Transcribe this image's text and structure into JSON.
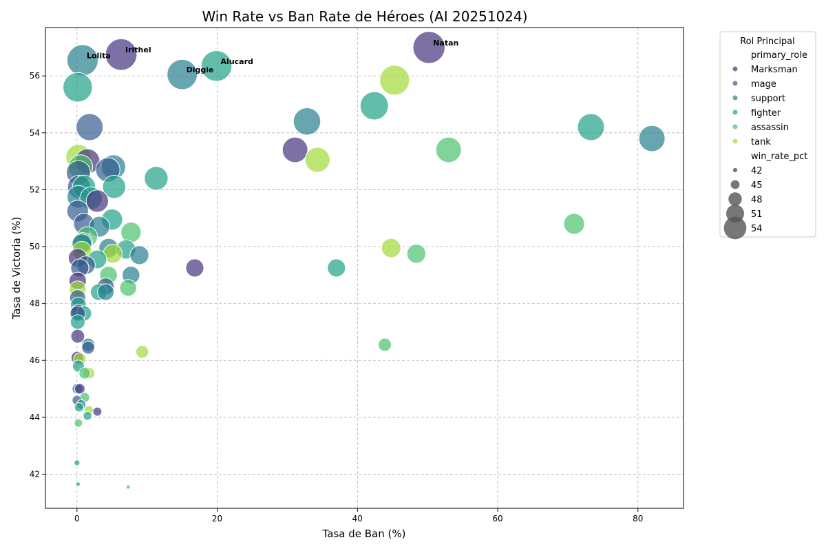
{
  "chart_data": {
    "type": "scatter",
    "title": "Win Rate vs Ban Rate de Héroes (AI 20251024)",
    "xlabel": "Tasa de Ban (%)",
    "ylabel": "Tasa de Victoria (%)",
    "xlim": [
      -4.5,
      86.5
    ],
    "ylim": [
      40.8,
      57.7
    ],
    "xticks": [
      0,
      20,
      40,
      60,
      80
    ],
    "yticks": [
      42,
      44,
      46,
      48,
      50,
      52,
      54,
      56
    ],
    "grid": true,
    "legend": {
      "title": "Rol Principal",
      "placement": "outside right",
      "hue_header": "primary_role",
      "size_header": "win_rate_pct",
      "size_entries": [
        42,
        45,
        48,
        51,
        54
      ]
    },
    "roles": [
      {
        "name": "Marksman",
        "color": "#46337e"
      },
      {
        "name": "mage",
        "color": "#365c8d"
      },
      {
        "name": "support",
        "color": "#277f8e"
      },
      {
        "name": "fighter",
        "color": "#1fa187"
      },
      {
        "name": "assassin",
        "color": "#4ac16d"
      },
      {
        "name": "tank",
        "color": "#a0da39"
      }
    ],
    "annotations": [
      {
        "text": "Natan",
        "x": 50.2,
        "y": 57.0
      },
      {
        "text": "Irithel",
        "x": 6.3,
        "y": 56.75
      },
      {
        "text": "Lolita",
        "x": 0.8,
        "y": 56.55
      },
      {
        "text": "Alucard",
        "x": 19.9,
        "y": 56.35
      },
      {
        "text": "Diggie",
        "x": 15.0,
        "y": 56.05
      }
    ],
    "points": [
      {
        "x": 50.2,
        "y": 57.0,
        "role": "Marksman"
      },
      {
        "x": 6.3,
        "y": 56.75,
        "role": "Marksman"
      },
      {
        "x": 0.8,
        "y": 56.55,
        "role": "support"
      },
      {
        "x": 19.9,
        "y": 56.35,
        "role": "fighter"
      },
      {
        "x": 15.0,
        "y": 56.05,
        "role": "support"
      },
      {
        "x": 0.1,
        "y": 55.6,
        "role": "fighter"
      },
      {
        "x": 45.3,
        "y": 55.85,
        "role": "tank"
      },
      {
        "x": 42.4,
        "y": 54.95,
        "role": "fighter"
      },
      {
        "x": 1.8,
        "y": 54.2,
        "role": "mage"
      },
      {
        "x": 32.8,
        "y": 54.4,
        "role": "support"
      },
      {
        "x": 73.3,
        "y": 54.2,
        "role": "fighter"
      },
      {
        "x": 82.0,
        "y": 53.8,
        "role": "support"
      },
      {
        "x": 53.0,
        "y": 53.4,
        "role": "assassin"
      },
      {
        "x": 31.1,
        "y": 53.4,
        "role": "Marksman"
      },
      {
        "x": 34.3,
        "y": 53.05,
        "role": "tank"
      },
      {
        "x": 1.5,
        "y": 53.0,
        "role": "Marksman"
      },
      {
        "x": 0.2,
        "y": 53.15,
        "role": "tank"
      },
      {
        "x": 0.5,
        "y": 52.8,
        "role": "assassin"
      },
      {
        "x": 0.2,
        "y": 52.6,
        "role": "mage"
      },
      {
        "x": 4.4,
        "y": 52.7,
        "role": "mage"
      },
      {
        "x": 5.2,
        "y": 52.8,
        "role": "support"
      },
      {
        "x": 11.3,
        "y": 52.4,
        "role": "fighter"
      },
      {
        "x": 5.3,
        "y": 52.1,
        "role": "fighter"
      },
      {
        "x": 0.3,
        "y": 52.1,
        "role": "mage"
      },
      {
        "x": 0.2,
        "y": 51.75,
        "role": "support"
      },
      {
        "x": 1.0,
        "y": 52.1,
        "role": "fighter"
      },
      {
        "x": 2.9,
        "y": 51.6,
        "role": "Marksman"
      },
      {
        "x": 2.0,
        "y": 51.7,
        "role": "fighter"
      },
      {
        "x": 0.1,
        "y": 51.25,
        "role": "mage"
      },
      {
        "x": 5.0,
        "y": 50.95,
        "role": "fighter"
      },
      {
        "x": 1.0,
        "y": 50.8,
        "role": "mage"
      },
      {
        "x": 3.2,
        "y": 50.7,
        "role": "support"
      },
      {
        "x": 7.7,
        "y": 50.5,
        "role": "assassin"
      },
      {
        "x": 1.5,
        "y": 50.35,
        "role": "assassin"
      },
      {
        "x": 0.7,
        "y": 50.1,
        "role": "support"
      },
      {
        "x": 0.8,
        "y": 50.15,
        "role": "fighter"
      },
      {
        "x": 4.5,
        "y": 49.95,
        "role": "support"
      },
      {
        "x": 7.0,
        "y": 49.9,
        "role": "fighter"
      },
      {
        "x": 0.7,
        "y": 49.85,
        "role": "tank"
      },
      {
        "x": 8.9,
        "y": 49.7,
        "role": "support"
      },
      {
        "x": 5.1,
        "y": 49.75,
        "role": "tank"
      },
      {
        "x": 0.1,
        "y": 49.6,
        "role": "Marksman"
      },
      {
        "x": 2.9,
        "y": 49.55,
        "role": "fighter"
      },
      {
        "x": 1.3,
        "y": 49.35,
        "role": "mage"
      },
      {
        "x": 0.4,
        "y": 49.25,
        "role": "mage"
      },
      {
        "x": 7.7,
        "y": 49.0,
        "role": "support"
      },
      {
        "x": 4.5,
        "y": 49.0,
        "role": "assassin"
      },
      {
        "x": 0.1,
        "y": 48.8,
        "role": "Marksman"
      },
      {
        "x": 0.1,
        "y": 48.5,
        "role": "tank"
      },
      {
        "x": 4.1,
        "y": 48.6,
        "role": "mage"
      },
      {
        "x": 3.1,
        "y": 48.4,
        "role": "fighter"
      },
      {
        "x": 4.1,
        "y": 48.4,
        "role": "support"
      },
      {
        "x": 7.3,
        "y": 48.55,
        "role": "assassin"
      },
      {
        "x": 0.1,
        "y": 48.2,
        "role": "mage"
      },
      {
        "x": 0.2,
        "y": 47.95,
        "role": "fighter"
      },
      {
        "x": 1.0,
        "y": 47.65,
        "role": "fighter"
      },
      {
        "x": 0.1,
        "y": 47.65,
        "role": "mage"
      },
      {
        "x": 0.2,
        "y": 47.7,
        "role": "Marksman"
      },
      {
        "x": 0.1,
        "y": 47.35,
        "role": "fighter"
      },
      {
        "x": 16.8,
        "y": 49.25,
        "role": "Marksman"
      },
      {
        "x": 37.0,
        "y": 49.25,
        "role": "fighter"
      },
      {
        "x": 44.8,
        "y": 49.95,
        "role": "tank"
      },
      {
        "x": 48.4,
        "y": 49.75,
        "role": "assassin"
      },
      {
        "x": 70.9,
        "y": 50.8,
        "role": "assassin"
      },
      {
        "x": 0.1,
        "y": 46.85,
        "role": "Marksman"
      },
      {
        "x": 1.6,
        "y": 46.55,
        "role": "support"
      },
      {
        "x": 1.6,
        "y": 46.45,
        "role": "mage"
      },
      {
        "x": 9.3,
        "y": 46.3,
        "role": "tank"
      },
      {
        "x": 43.9,
        "y": 46.55,
        "role": "assassin"
      },
      {
        "x": 0.05,
        "y": 46.1,
        "role": "Marksman"
      },
      {
        "x": 0.4,
        "y": 46.05,
        "role": "tank"
      },
      {
        "x": 0.2,
        "y": 45.8,
        "role": "fighter"
      },
      {
        "x": 1.7,
        "y": 45.55,
        "role": "tank"
      },
      {
        "x": 1.1,
        "y": 45.55,
        "role": "assassin"
      },
      {
        "x": 0.05,
        "y": 45.0,
        "role": "support"
      },
      {
        "x": 0.4,
        "y": 45.0,
        "role": "Marksman"
      },
      {
        "x": 1.1,
        "y": 44.7,
        "role": "assassin"
      },
      {
        "x": 0.0,
        "y": 44.6,
        "role": "mage"
      },
      {
        "x": 0.6,
        "y": 44.45,
        "role": "support"
      },
      {
        "x": 0.3,
        "y": 44.35,
        "role": "fighter"
      },
      {
        "x": 1.7,
        "y": 44.25,
        "role": "tank"
      },
      {
        "x": 2.9,
        "y": 44.2,
        "role": "Marksman"
      },
      {
        "x": 1.5,
        "y": 44.05,
        "role": "fighter"
      },
      {
        "x": 0.2,
        "y": 43.8,
        "role": "assassin"
      },
      {
        "x": 0.0,
        "y": 42.4,
        "role": "fighter"
      },
      {
        "x": 0.15,
        "y": 41.65,
        "role": "fighter"
      },
      {
        "x": 7.3,
        "y": 41.55,
        "role": "assassin"
      }
    ]
  }
}
